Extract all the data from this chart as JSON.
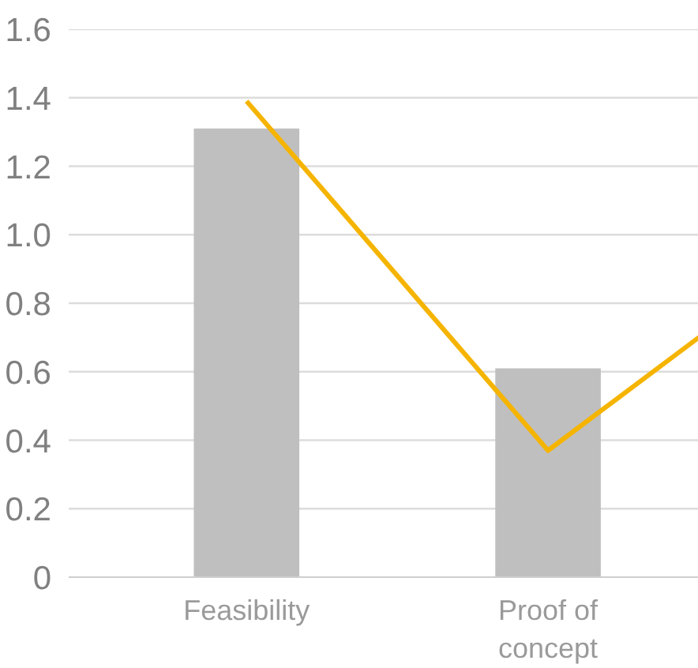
{
  "chart_data": {
    "type": "bar",
    "categories": [
      "Feasibility",
      "Proof of concept",
      null
    ],
    "series": [
      {
        "color": "#bfbfbf",
        "values": [
          1.31,
          0.61,
          null
        ]
      },
      {
        "type": "line",
        "color": "#f5b400",
        "values": [
          1.39,
          0.37,
          1.03
        ]
      }
    ],
    "ylim": [
      0,
      1.6
    ],
    "yticks": [
      0,
      0.2,
      0.4,
      0.6,
      0.8,
      {
        "value": 1,
        "label": "1.0"
      },
      1.2,
      1.4,
      1.6
    ],
    "grid": "y",
    "marker": "none",
    "line_style": "solid"
  }
}
